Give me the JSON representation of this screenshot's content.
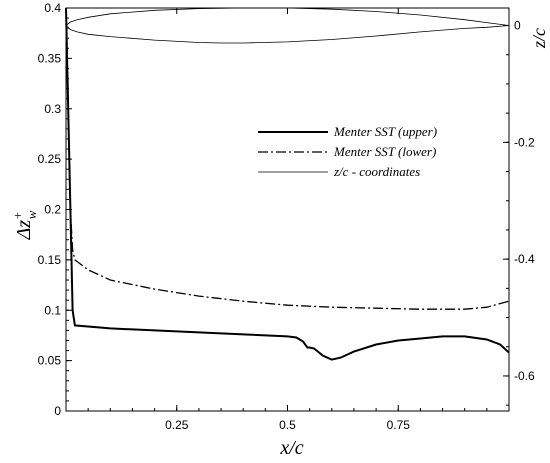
{
  "chart_data": {
    "type": "line",
    "title": "",
    "xlabel": "x/c",
    "ylabel_left_base": "Δz",
    "ylabel_left_sup": "+",
    "ylabel_left_sub": "w",
    "ylabel_right": "z/c",
    "xlim": [
      0,
      1
    ],
    "ylim_left": [
      0,
      0.4
    ],
    "ylim_right": [
      -0.66,
      0.03
    ],
    "x_ticks": [
      0.25,
      0.5,
      0.75
    ],
    "x_tick_labels": [
      "0.25",
      "0.5",
      "0.75"
    ],
    "y_left_ticks": [
      0,
      0.05,
      0.1,
      0.15,
      0.2,
      0.25,
      0.3,
      0.35,
      0.4
    ],
    "y_left_tick_labels": [
      "0",
      "0.05",
      "0.1",
      "0.15",
      "0.2",
      "0.25",
      "0.3",
      "0.35",
      "0.4"
    ],
    "y_right_ticks": [
      0,
      -0.2,
      -0.4,
      -0.6
    ],
    "y_right_tick_labels": [
      "0",
      "-0.2",
      "-0.4",
      "-0.6"
    ],
    "grid": false,
    "legend_position": "upper-right",
    "series": [
      {
        "name": "Menter SST (upper)",
        "axis": "left",
        "style": "solid-thick",
        "x": [
          0.0,
          0.005,
          0.01,
          0.015,
          0.02,
          0.1,
          0.2,
          0.3,
          0.4,
          0.5,
          0.52,
          0.535,
          0.545,
          0.55,
          0.56,
          0.58,
          0.6,
          0.62,
          0.65,
          0.7,
          0.75,
          0.8,
          0.85,
          0.9,
          0.95,
          0.98,
          1.0
        ],
        "y": [
          0.4,
          0.3,
          0.2,
          0.1,
          0.085,
          0.082,
          0.08,
          0.078,
          0.076,
          0.074,
          0.073,
          0.069,
          0.063,
          0.063,
          0.062,
          0.055,
          0.051,
          0.053,
          0.059,
          0.066,
          0.07,
          0.072,
          0.074,
          0.074,
          0.071,
          0.066,
          0.058
        ]
      },
      {
        "name": "Menter SST (lower)",
        "axis": "left",
        "style": "dash-dot",
        "x": [
          0.0,
          0.005,
          0.01,
          0.015,
          0.02,
          0.05,
          0.1,
          0.2,
          0.3,
          0.4,
          0.5,
          0.6,
          0.7,
          0.8,
          0.9,
          0.95,
          1.0
        ],
        "y": [
          0.4,
          0.3,
          0.2,
          0.16,
          0.15,
          0.14,
          0.13,
          0.121,
          0.114,
          0.109,
          0.105,
          0.103,
          0.102,
          0.101,
          0.101,
          0.103,
          0.109
        ]
      },
      {
        "name": "z/c - coordinates",
        "axis": "right",
        "style": "solid-thin",
        "x": [
          0.0,
          0.01,
          0.025,
          0.05,
          0.1,
          0.2,
          0.3,
          0.4,
          0.5,
          0.6,
          0.7,
          0.8,
          0.9,
          0.95,
          1.0,
          0.95,
          0.9,
          0.8,
          0.7,
          0.6,
          0.5,
          0.4,
          0.35,
          0.3,
          0.2,
          0.1,
          0.05,
          0.025,
          0.01,
          0.0
        ],
        "y": [
          0.0,
          0.006,
          0.01,
          0.014,
          0.02,
          0.026,
          0.029,
          0.03,
          0.03,
          0.028,
          0.024,
          0.018,
          0.01,
          0.005,
          0.0,
          -0.003,
          -0.005,
          -0.011,
          -0.018,
          -0.024,
          -0.028,
          -0.03,
          -0.03,
          -0.029,
          -0.025,
          -0.019,
          -0.015,
          -0.011,
          -0.007,
          0.0
        ]
      }
    ]
  }
}
